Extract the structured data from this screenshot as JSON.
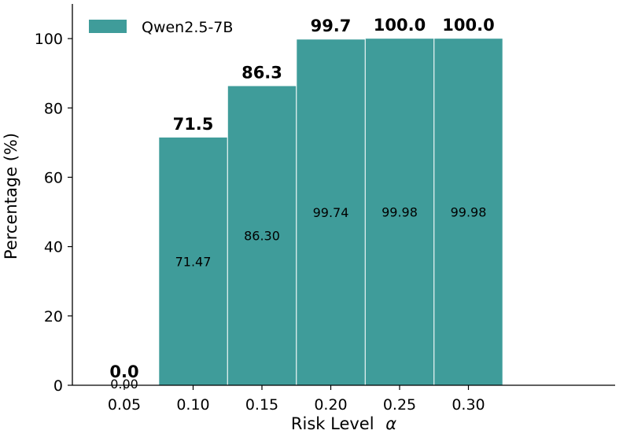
{
  "chart_data": {
    "type": "bar",
    "categories": [
      "0.05",
      "0.10",
      "0.15",
      "0.20",
      "0.25",
      "0.30"
    ],
    "series": [
      {
        "name": "Qwen2.5-7B",
        "values": [
          0.0,
          71.47,
          86.3,
          99.74,
          99.98,
          99.98
        ],
        "color": "#3f9c9a"
      }
    ],
    "top_labels": [
      "0.0",
      "71.5",
      "86.3",
      "99.7",
      "100.0",
      "100.0"
    ],
    "inner_labels": [
      "0.00",
      "71.47",
      "86.30",
      "99.74",
      "99.98",
      "99.98"
    ],
    "xlabel": "Risk Level",
    "xlabel_symbol": "α",
    "ylabel": "Percentage (%)",
    "ylim": [
      0,
      110
    ],
    "yticks": [
      0,
      20,
      40,
      60,
      80,
      100
    ],
    "legend_position": "top-left",
    "grid": false
  }
}
